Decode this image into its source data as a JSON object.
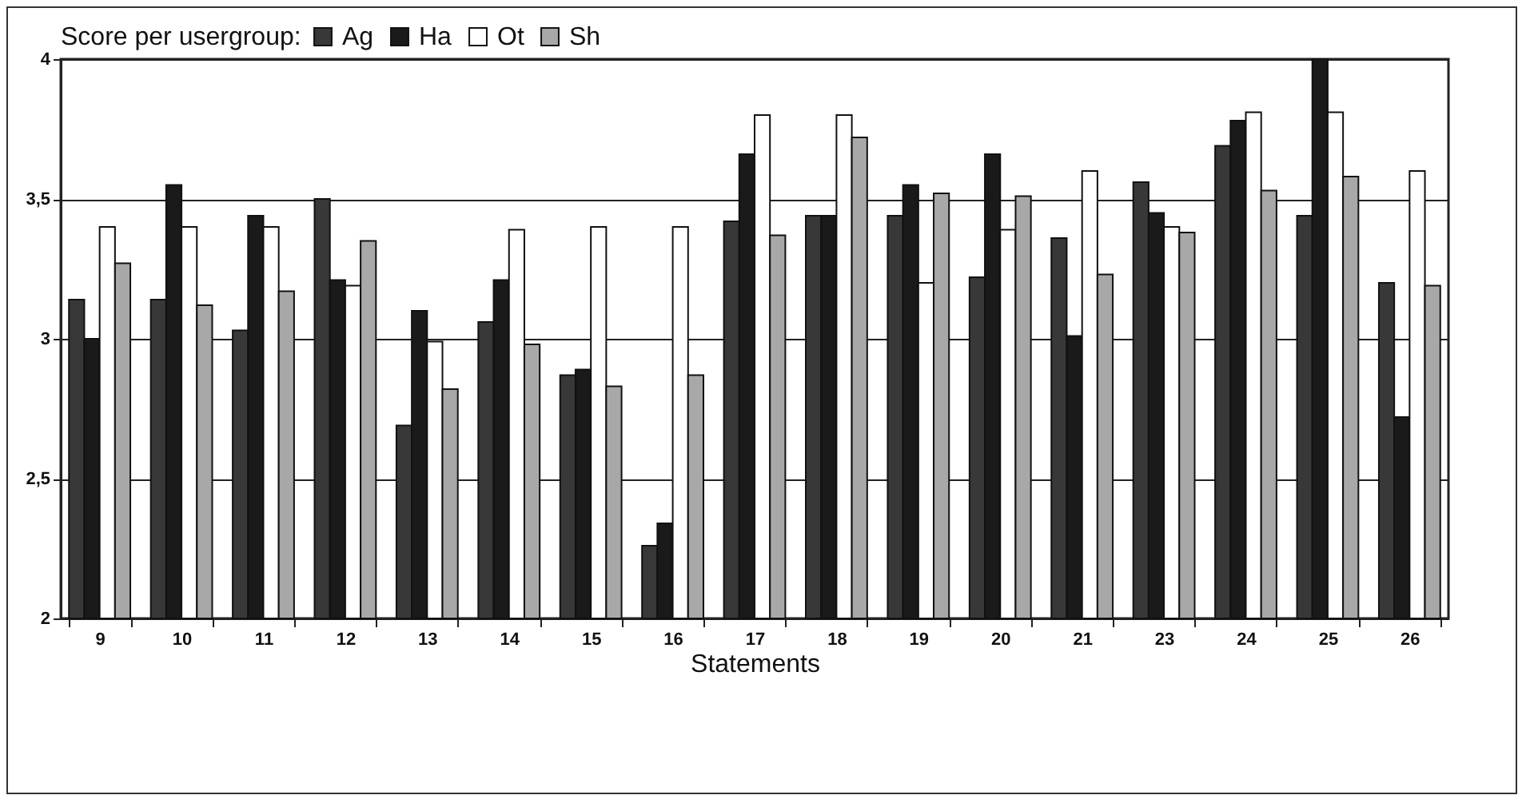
{
  "chart_data": {
    "type": "bar",
    "xlabel": "Statements",
    "legend_title": "Score per usergroup:",
    "legend": "top left",
    "grid": "y",
    "categories": [
      "9",
      "10",
      "11",
      "12",
      "13",
      "14",
      "15",
      "16",
      "17",
      "18",
      "19",
      "20",
      "21",
      "23",
      "24",
      "25",
      "26"
    ],
    "ylim": [
      2,
      4
    ],
    "yticks": [
      2,
      {
        "value": 2.5,
        "label": "2,5"
      },
      3,
      {
        "value": 3.5,
        "label": "3,5"
      },
      4
    ],
    "series": [
      {
        "name": "Ag",
        "color": "#383838",
        "values": [
          3.14,
          3.14,
          3.03,
          3.5,
          2.69,
          3.06,
          2.87,
          2.26,
          3.42,
          3.44,
          3.44,
          3.22,
          3.36,
          3.56,
          3.69,
          3.44,
          3.2
        ]
      },
      {
        "name": "Ha",
        "color": "#1a1a1a",
        "values": [
          3.0,
          3.55,
          3.44,
          3.21,
          3.1,
          3.21,
          2.89,
          2.34,
          3.66,
          3.44,
          3.55,
          3.66,
          3.01,
          3.45,
          3.78,
          4.0,
          2.72
        ]
      },
      {
        "name": "Ot",
        "color": "#ffffff",
        "values": [
          3.4,
          3.4,
          3.4,
          3.19,
          2.99,
          3.39,
          3.4,
          3.4,
          3.8,
          3.8,
          3.2,
          3.39,
          3.6,
          3.4,
          3.81,
          3.81,
          3.6
        ]
      },
      {
        "name": "Sh",
        "color": "#a8a8a8",
        "values": [
          3.27,
          3.12,
          3.17,
          3.35,
          2.82,
          2.98,
          2.83,
          2.87,
          3.37,
          3.72,
          3.52,
          3.51,
          3.23,
          3.38,
          3.53,
          3.58,
          3.19
        ]
      }
    ]
  }
}
